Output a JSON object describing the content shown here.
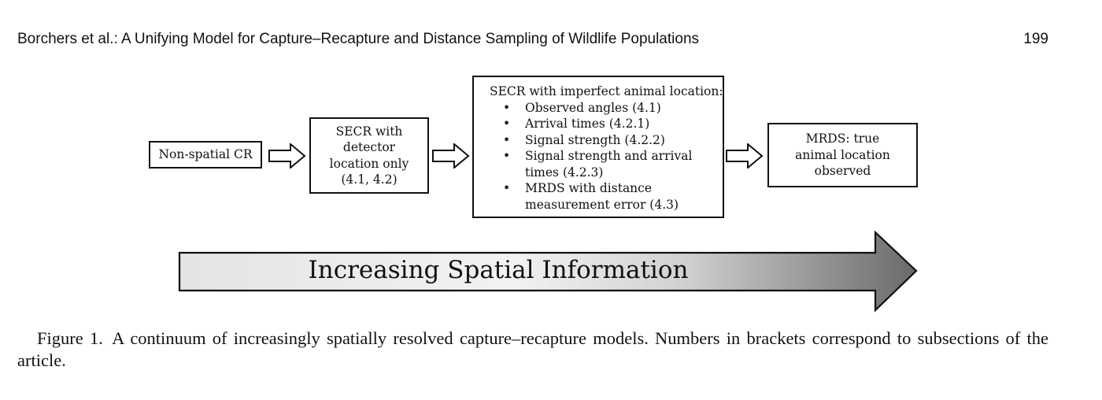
{
  "header": {
    "running_title": "Borchers et al.: A Unifying Model for Capture–Recapture and Distance Sampling of Wildlife Populations",
    "page_number": "199"
  },
  "figure": {
    "boxes": {
      "non_spatial": "Non-spatial CR",
      "secr_detector": [
        "SECR with",
        "detector",
        "location only",
        "(4.1, 4.2)"
      ],
      "secr_imperfect": {
        "heading": "SECR with imperfect animal location:",
        "items": [
          [
            "Observed angles (4.1)"
          ],
          [
            "Arrival times (4.2.1)"
          ],
          [
            "Signal strength (4.2.2)"
          ],
          [
            "Signal strength and arrival",
            "times (4.2.3)"
          ],
          [
            "MRDS with distance",
            "measurement error (4.3)"
          ]
        ]
      },
      "mrds_true": [
        "MRDS: true",
        "animal location",
        "observed"
      ]
    },
    "big_arrow_label": "Increasing Spatial Information",
    "icons": [
      "hollow-right-arrow-icon",
      "gradient-right-arrow-icon"
    ]
  },
  "caption": {
    "text": "Figure 1. A continuum of increasingly spatially resolved capture–recapture models. Numbers in brackets correspond to subsections of the article."
  }
}
